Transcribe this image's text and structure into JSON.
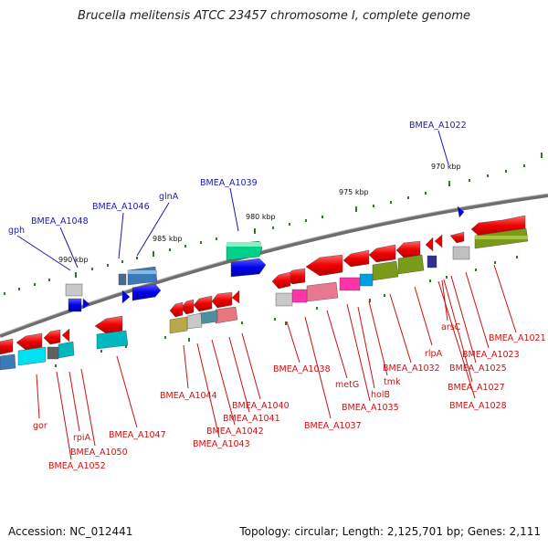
{
  "title": "Brucella melitensis ATCC 23457 chromosome I, complete genome",
  "footer": {
    "accession": "Accession: NC_012441",
    "summary": "Topology: circular; Length: 2,125,701 bp; Genes: 2,111"
  },
  "colors": {
    "backbone": "#808080",
    "tick": "#2a7a2a",
    "label_top": "#1a1aaa",
    "label_bottom": "#cc1111",
    "scale_text": "#111111"
  },
  "scale_labels": [
    "970 kbp",
    "975 kbp",
    "980 kbp",
    "985 kbp",
    "990 kbp"
  ],
  "top_labels": [
    "BMEA_A1022",
    "BMEA_A1039",
    "glnA",
    "BMEA_A1046",
    "BMEA_A1048",
    "gph"
  ],
  "bottom_labels": [
    "BMEA_A1021",
    "BMEA_A1023",
    "BMEA_A1025",
    "BMEA_A1027",
    "BMEA_A1028",
    "arsC",
    "rlpA",
    "BMEA_A1032",
    "tmk",
    "holB",
    "BMEA_A1035",
    "metG",
    "BMEA_A1037",
    "BMEA_A1038",
    "BMEA_A1040",
    "BMEA_A1041",
    "BMEA_A1042",
    "BMEA_A1043",
    "BMEA_A1044",
    "BMEA_A1047",
    "BMEA_A1050",
    "rpiA",
    "BMEA_A1052",
    "gor"
  ]
}
